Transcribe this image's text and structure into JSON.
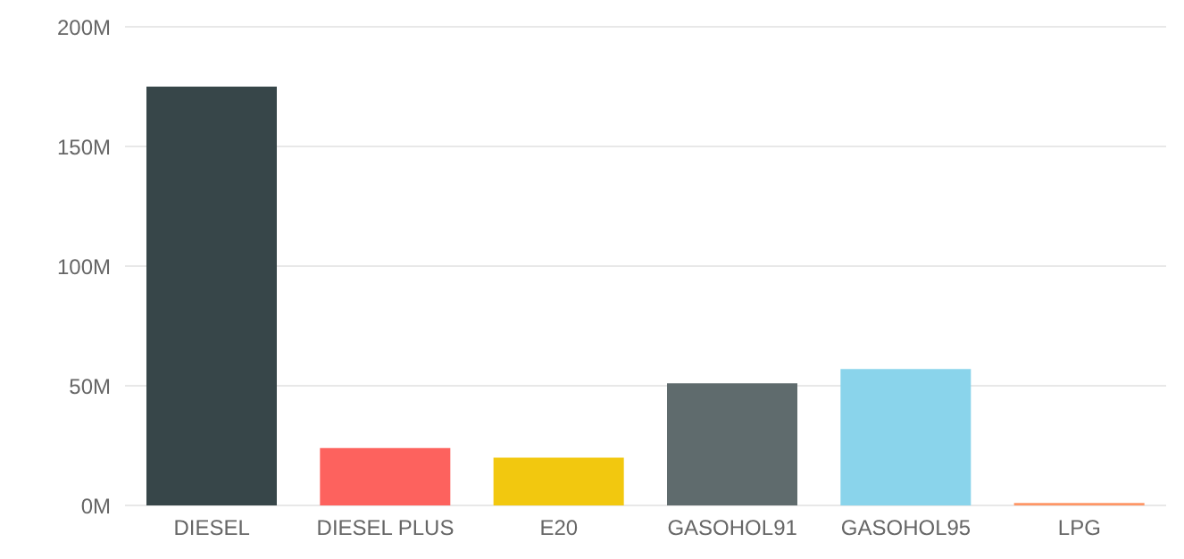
{
  "chart_data": {
    "type": "bar",
    "categories": [
      "DIESEL",
      "DIESEL PLUS",
      "E20",
      "GASOHOL91",
      "GASOHOL95",
      "LPG"
    ],
    "values": [
      175,
      24,
      20,
      51,
      57,
      1
    ],
    "colors": [
      "#374649",
      "#fd625e",
      "#f2c80f",
      "#5f6b6d",
      "#8ad4eb",
      "#fe9666"
    ],
    "ylim": [
      0,
      200
    ],
    "yticks": [
      {
        "value": 0,
        "label": "0M"
      },
      {
        "value": 50,
        "label": "50M"
      },
      {
        "value": 100,
        "label": "100M"
      },
      {
        "value": 150,
        "label": "150M"
      },
      {
        "value": 200,
        "label": "200M"
      }
    ],
    "grid": "y"
  }
}
